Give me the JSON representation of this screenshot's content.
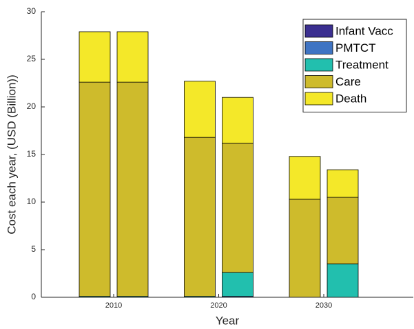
{
  "chart_data": {
    "type": "bar",
    "stacked": true,
    "x_label": "Year",
    "y_label": "Cost each year, (USD (Billion))",
    "categories": [
      "2010",
      "2020",
      "2030"
    ],
    "series": [
      {
        "name": "Infant Vacc",
        "color": "#3b2f90",
        "values": [
          [
            0,
            0
          ],
          [
            0,
            0
          ],
          [
            0,
            0
          ]
        ]
      },
      {
        "name": "PMTCT",
        "color": "#3f74c3",
        "values": [
          [
            0,
            0
          ],
          [
            0,
            0.1
          ],
          [
            0,
            0
          ]
        ]
      },
      {
        "name": "Treatment",
        "color": "#22bfae",
        "values": [
          [
            0.1,
            0.1
          ],
          [
            0.1,
            2.5
          ],
          [
            0,
            3.5
          ]
        ]
      },
      {
        "name": "Care",
        "color": "#cebb2c",
        "values": [
          [
            22.5,
            22.5
          ],
          [
            16.7,
            13.6
          ],
          [
            10.3,
            7.0
          ]
        ]
      },
      {
        "name": "Death",
        "color": "#f4e829",
        "values": [
          [
            5.3,
            5.3
          ],
          [
            5.9,
            4.8
          ],
          [
            4.5,
            2.9
          ]
        ]
      }
    ],
    "ylim": [
      0,
      30
    ],
    "yticks": [
      0,
      5,
      10,
      15,
      20,
      25,
      30
    ],
    "legend": "top-right"
  }
}
